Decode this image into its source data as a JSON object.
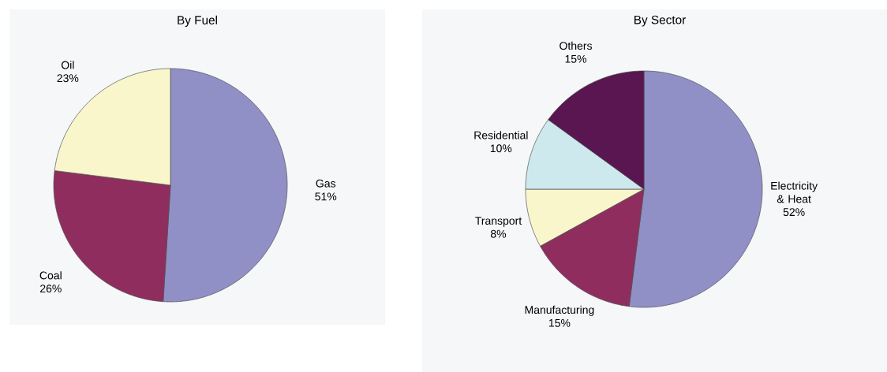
{
  "chart_data": [
    {
      "type": "pie",
      "title": "By Fuel",
      "categories": [
        "Gas",
        "Coal",
        "Oil"
      ],
      "values": [
        51,
        26,
        23
      ],
      "value_labels": [
        "51%",
        "26%",
        "23%"
      ],
      "colors": [
        "#9090c6",
        "#8f2e5e",
        "#faf6cc"
      ]
    },
    {
      "type": "pie",
      "title": "By Sector",
      "categories": [
        "Electricity & Heat",
        "Manufacturing",
        "Transport",
        "Residential",
        "Others"
      ],
      "values": [
        52,
        15,
        8,
        10,
        15
      ],
      "value_labels": [
        "52%",
        "15%",
        "8%",
        "10%",
        "15%"
      ],
      "colors": [
        "#9090c6",
        "#8f2e5e",
        "#faf6cc",
        "#cde9ee",
        "#5a1650"
      ]
    }
  ]
}
